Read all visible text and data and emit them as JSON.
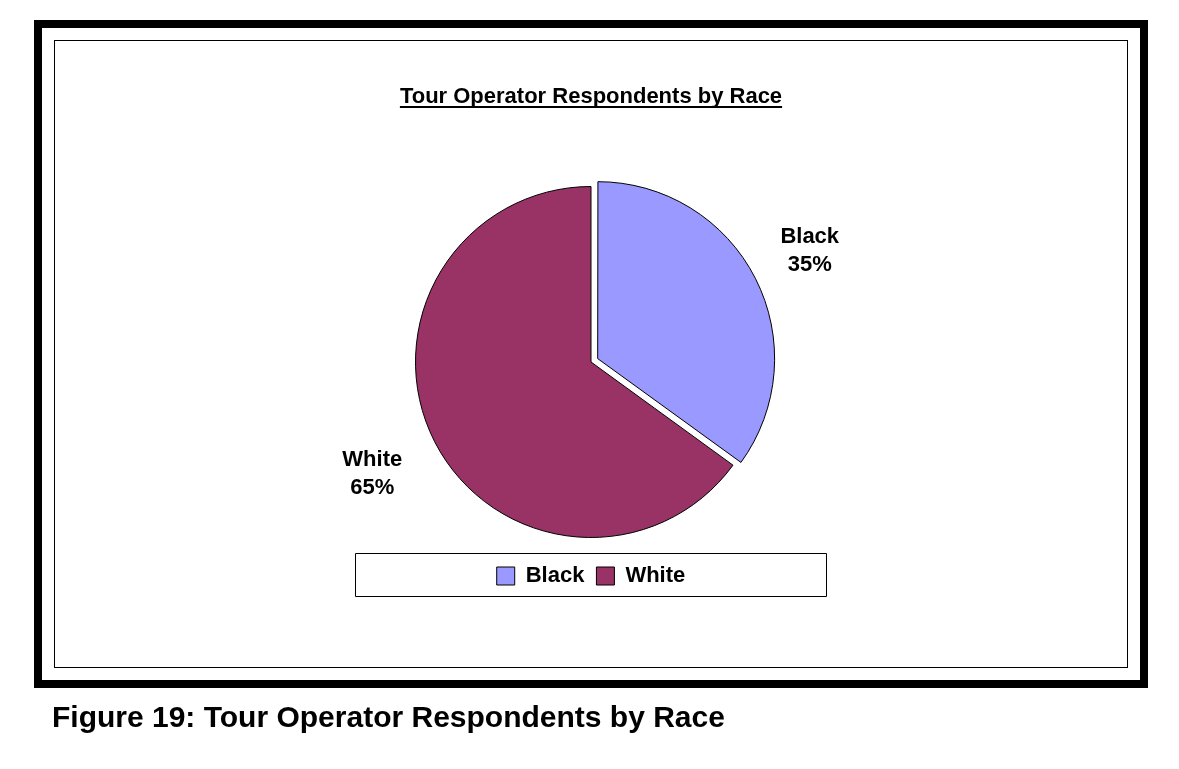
{
  "chart_data": {
    "type": "pie",
    "title": "Tour Operator Respondents by Race",
    "categories": [
      "Black",
      "White"
    ],
    "values": [
      35,
      65
    ],
    "value_labels": [
      "35%",
      "65%"
    ],
    "colors": [
      "#9999ff",
      "#993366"
    ],
    "legend": "bottom",
    "annotations": [
      "Figure 19: Tour Operator Respondents by Race"
    ]
  }
}
